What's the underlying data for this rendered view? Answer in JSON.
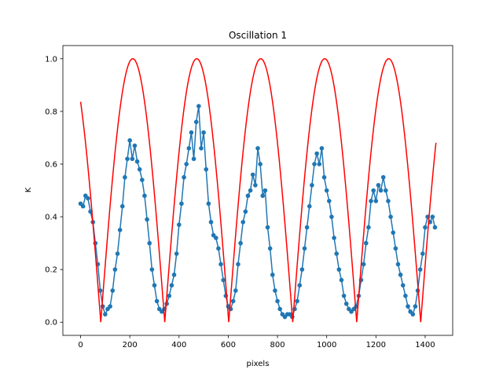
{
  "chart_data": {
    "type": "line",
    "title": "Oscillation 1",
    "xlabel": "pixels",
    "ylabel": "K",
    "xlim": [
      -72,
      1512
    ],
    "ylim": [
      -0.05,
      1.05
    ],
    "xticks": [
      0,
      200,
      400,
      600,
      800,
      1000,
      1200,
      1400
    ],
    "xtick_labels": [
      "0",
      "200",
      "400",
      "600",
      "800",
      "1000",
      "1200",
      "1400"
    ],
    "yticks": [
      0.0,
      0.2,
      0.4,
      0.6,
      0.8,
      1.0
    ],
    "ytick_labels": [
      "0.0",
      "0.2",
      "0.4",
      "0.6",
      "0.8",
      "1.0"
    ],
    "grid": false,
    "series": [
      {
        "color": "#1f77b4",
        "style": "line-with-markers",
        "x": [
          0,
          10,
          20,
          30,
          40,
          50,
          60,
          70,
          80,
          90,
          100,
          110,
          120,
          130,
          140,
          150,
          160,
          170,
          180,
          190,
          200,
          210,
          220,
          230,
          240,
          250,
          260,
          270,
          280,
          290,
          300,
          310,
          320,
          330,
          340,
          350,
          360,
          370,
          380,
          390,
          400,
          410,
          420,
          430,
          440,
          450,
          460,
          470,
          480,
          490,
          500,
          510,
          520,
          530,
          540,
          550,
          560,
          570,
          580,
          590,
          600,
          610,
          620,
          630,
          640,
          650,
          660,
          670,
          680,
          690,
          700,
          710,
          720,
          730,
          740,
          750,
          760,
          770,
          780,
          790,
          800,
          810,
          820,
          830,
          840,
          850,
          860,
          870,
          880,
          890,
          900,
          910,
          920,
          930,
          940,
          950,
          960,
          970,
          980,
          990,
          1000,
          1010,
          1020,
          1030,
          1040,
          1050,
          1060,
          1070,
          1080,
          1090,
          1100,
          1110,
          1120,
          1130,
          1140,
          1150,
          1160,
          1170,
          1180,
          1190,
          1200,
          1210,
          1220,
          1230,
          1240,
          1250,
          1260,
          1270,
          1280,
          1290,
          1300,
          1310,
          1320,
          1330,
          1340,
          1350,
          1360,
          1370,
          1380,
          1390,
          1400,
          1410,
          1420,
          1430,
          1440
        ],
        "y": [
          0.45,
          0.44,
          0.48,
          0.47,
          0.42,
          0.38,
          0.3,
          0.22,
          0.12,
          0.06,
          0.03,
          0.05,
          0.06,
          0.12,
          0.2,
          0.26,
          0.35,
          0.44,
          0.55,
          0.62,
          0.69,
          0.62,
          0.67,
          0.61,
          0.58,
          0.54,
          0.48,
          0.39,
          0.3,
          0.2,
          0.14,
          0.08,
          0.05,
          0.04,
          0.05,
          0.07,
          0.1,
          0.14,
          0.18,
          0.26,
          0.37,
          0.45,
          0.55,
          0.6,
          0.66,
          0.72,
          0.62,
          0.76,
          0.82,
          0.66,
          0.72,
          0.58,
          0.45,
          0.38,
          0.33,
          0.32,
          0.28,
          0.22,
          0.16,
          0.1,
          0.06,
          0.05,
          0.08,
          0.12,
          0.22,
          0.3,
          0.38,
          0.42,
          0.48,
          0.5,
          0.56,
          0.52,
          0.66,
          0.6,
          0.48,
          0.5,
          0.36,
          0.28,
          0.18,
          0.12,
          0.08,
          0.05,
          0.03,
          0.02,
          0.03,
          0.03,
          0.02,
          0.05,
          0.08,
          0.14,
          0.2,
          0.28,
          0.36,
          0.44,
          0.52,
          0.6,
          0.64,
          0.6,
          0.66,
          0.55,
          0.5,
          0.46,
          0.4,
          0.32,
          0.26,
          0.2,
          0.16,
          0.1,
          0.07,
          0.05,
          0.04,
          0.05,
          0.06,
          0.1,
          0.16,
          0.22,
          0.3,
          0.36,
          0.46,
          0.5,
          0.46,
          0.52,
          0.5,
          0.55,
          0.5,
          0.46,
          0.4,
          0.34,
          0.28,
          0.22,
          0.18,
          0.14,
          0.1,
          0.06,
          0.04,
          0.03,
          0.06,
          0.12,
          0.2,
          0.26,
          0.36,
          0.4,
          0.38,
          0.4,
          0.36
        ]
      },
      {
        "color": "#ff0000",
        "style": "line",
        "function": "|sin(2*pi*(x - 82)/520)|",
        "x_range": [
          0,
          1445
        ]
      }
    ]
  }
}
